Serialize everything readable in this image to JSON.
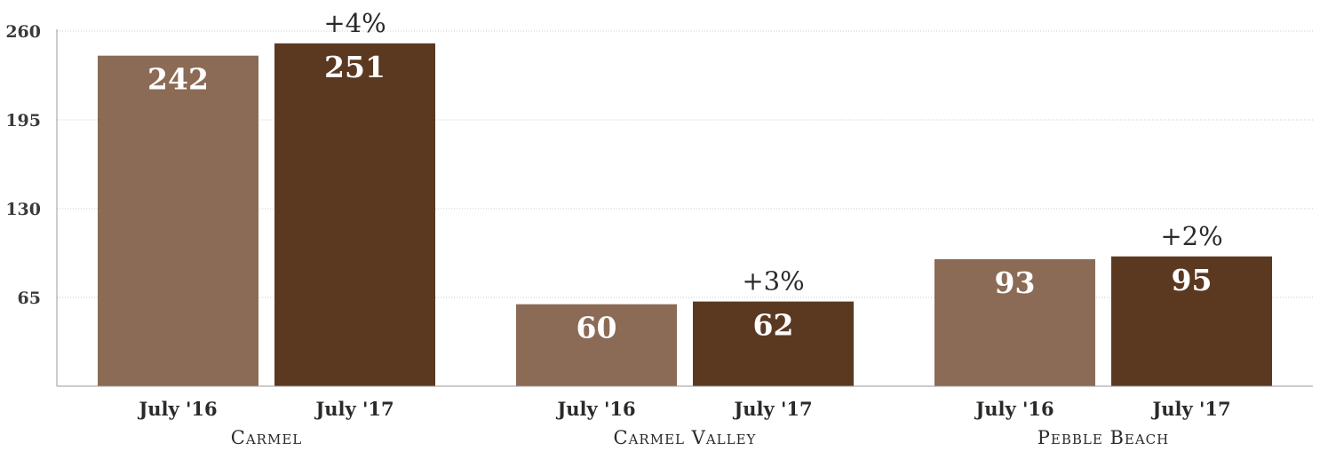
{
  "chart_data": {
    "type": "bar",
    "title": "",
    "xlabel": "",
    "ylabel": "",
    "ylim": [
      0,
      260
    ],
    "yticks": [
      260,
      195,
      130,
      65
    ],
    "grid": true,
    "groups": [
      {
        "name": "Carmel",
        "change": "+4%",
        "bars": [
          {
            "period": "July '16",
            "value": 242
          },
          {
            "period": "July '17",
            "value": 251
          }
        ]
      },
      {
        "name": "Carmel Valley",
        "change": "+3%",
        "bars": [
          {
            "period": "July '16",
            "value": 60
          },
          {
            "period": "July '17",
            "value": 62
          }
        ]
      },
      {
        "name": "Pebble Beach",
        "change": "+2%",
        "bars": [
          {
            "period": "July '16",
            "value": 93
          },
          {
            "period": "July '17",
            "value": 95
          }
        ]
      }
    ],
    "colors": {
      "july16": "#8b6b56",
      "july17": "#5b3921",
      "grid": "#c8c8c8",
      "axis": "#9a9a9a"
    }
  }
}
